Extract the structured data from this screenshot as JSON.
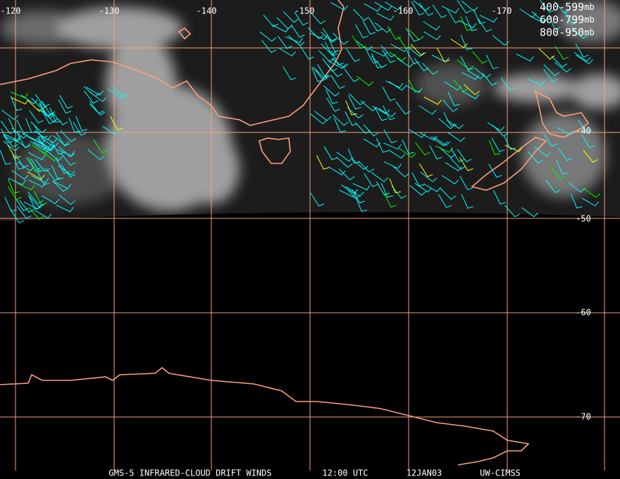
{
  "map": {
    "longitude_labels": [
      "-120",
      "-130",
      "-140",
      "-150",
      "-160",
      "-170"
    ],
    "latitude_labels": [
      "-40",
      "-50",
      "-60",
      "-70"
    ],
    "legend": [
      {
        "range": "400-599",
        "unit": "mb",
        "color": "#00ff00"
      },
      {
        "range": "600-799",
        "unit": "mb",
        "color": "#ffff00"
      },
      {
        "range": "800-950",
        "unit": "mb",
        "color": "#00ffff"
      }
    ],
    "footer": [
      "GMS-5 INFRARED-CLOUD DRIFT WINDS",
      "12:00 UTC",
      "12JAN03",
      "UW-CIMSS"
    ]
  }
}
